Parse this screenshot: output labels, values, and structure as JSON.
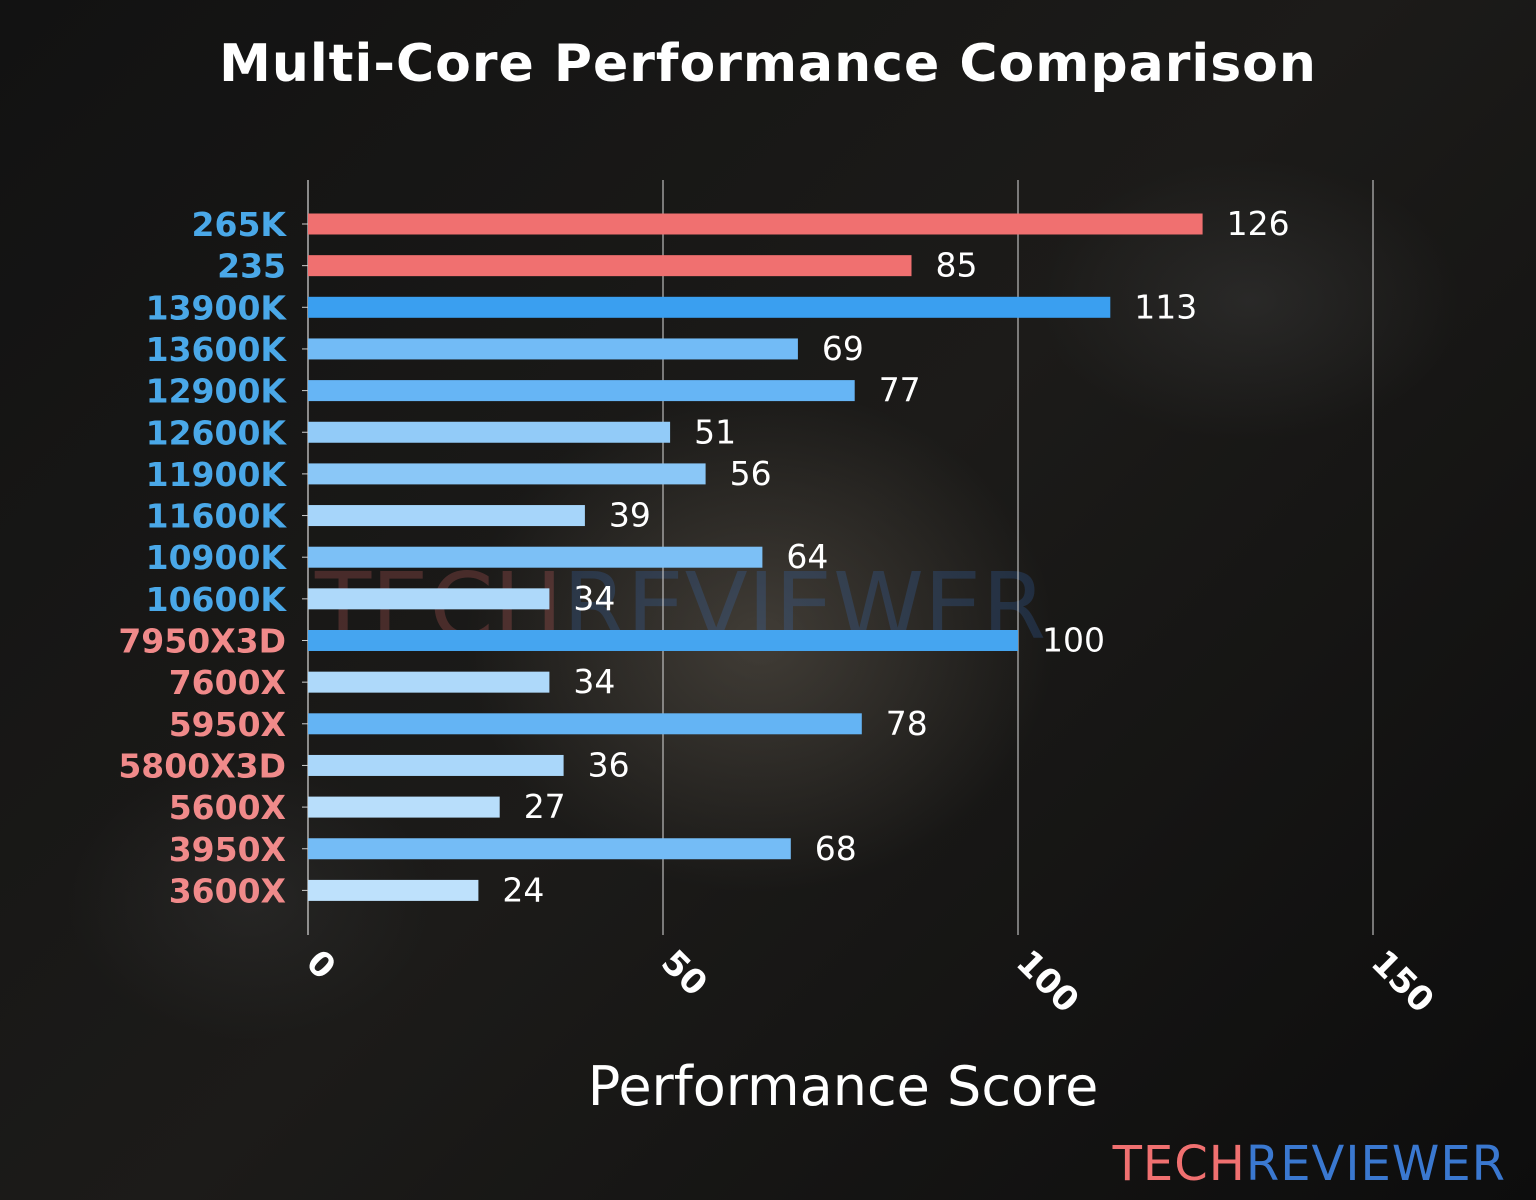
{
  "chart_data": {
    "type": "bar",
    "orientation": "horizontal",
    "title": "Multi-Core Performance Comparison",
    "xlabel": "Performance Score",
    "ylabel": "",
    "xlim": [
      0,
      150
    ],
    "xticks": [
      0,
      50,
      100,
      150
    ],
    "grid": "vertical",
    "categories": [
      "265K",
      "235",
      "13900K",
      "13600K",
      "12900K",
      "12600K",
      "11900K",
      "11600K",
      "10900K",
      "10600K",
      "7950X3D",
      "7600X",
      "5950X",
      "5800X3D",
      "5600X",
      "3950X",
      "3600X"
    ],
    "values": [
      126,
      85,
      113,
      69,
      77,
      51,
      56,
      39,
      64,
      34,
      100,
      34,
      78,
      36,
      27,
      68,
      24
    ],
    "bar_colors": [
      "#f07070",
      "#f07070",
      "#3a9ff0",
      "#72bbf6",
      "#66b5f5",
      "#92cbf8",
      "#8ac7f7",
      "#a6d5fa",
      "#7cc0f6",
      "#aed9fa",
      "#45a5f0",
      "#aed9fa",
      "#64b4f4",
      "#aad7fa",
      "#b8defb",
      "#74bcf6",
      "#bee1fc"
    ],
    "label_colors": [
      "#4aa8e8",
      "#4aa8e8",
      "#4aa8e8",
      "#4aa8e8",
      "#4aa8e8",
      "#4aa8e8",
      "#4aa8e8",
      "#4aa8e8",
      "#4aa8e8",
      "#4aa8e8",
      "#f08a8a",
      "#f08a8a",
      "#f08a8a",
      "#f08a8a",
      "#f08a8a",
      "#f08a8a",
      "#f08a8a"
    ]
  },
  "watermark": {
    "part1": "TECH",
    "part2": "REVIEWER",
    "color1": "#f07070",
    "color2": "#3a78d0"
  }
}
